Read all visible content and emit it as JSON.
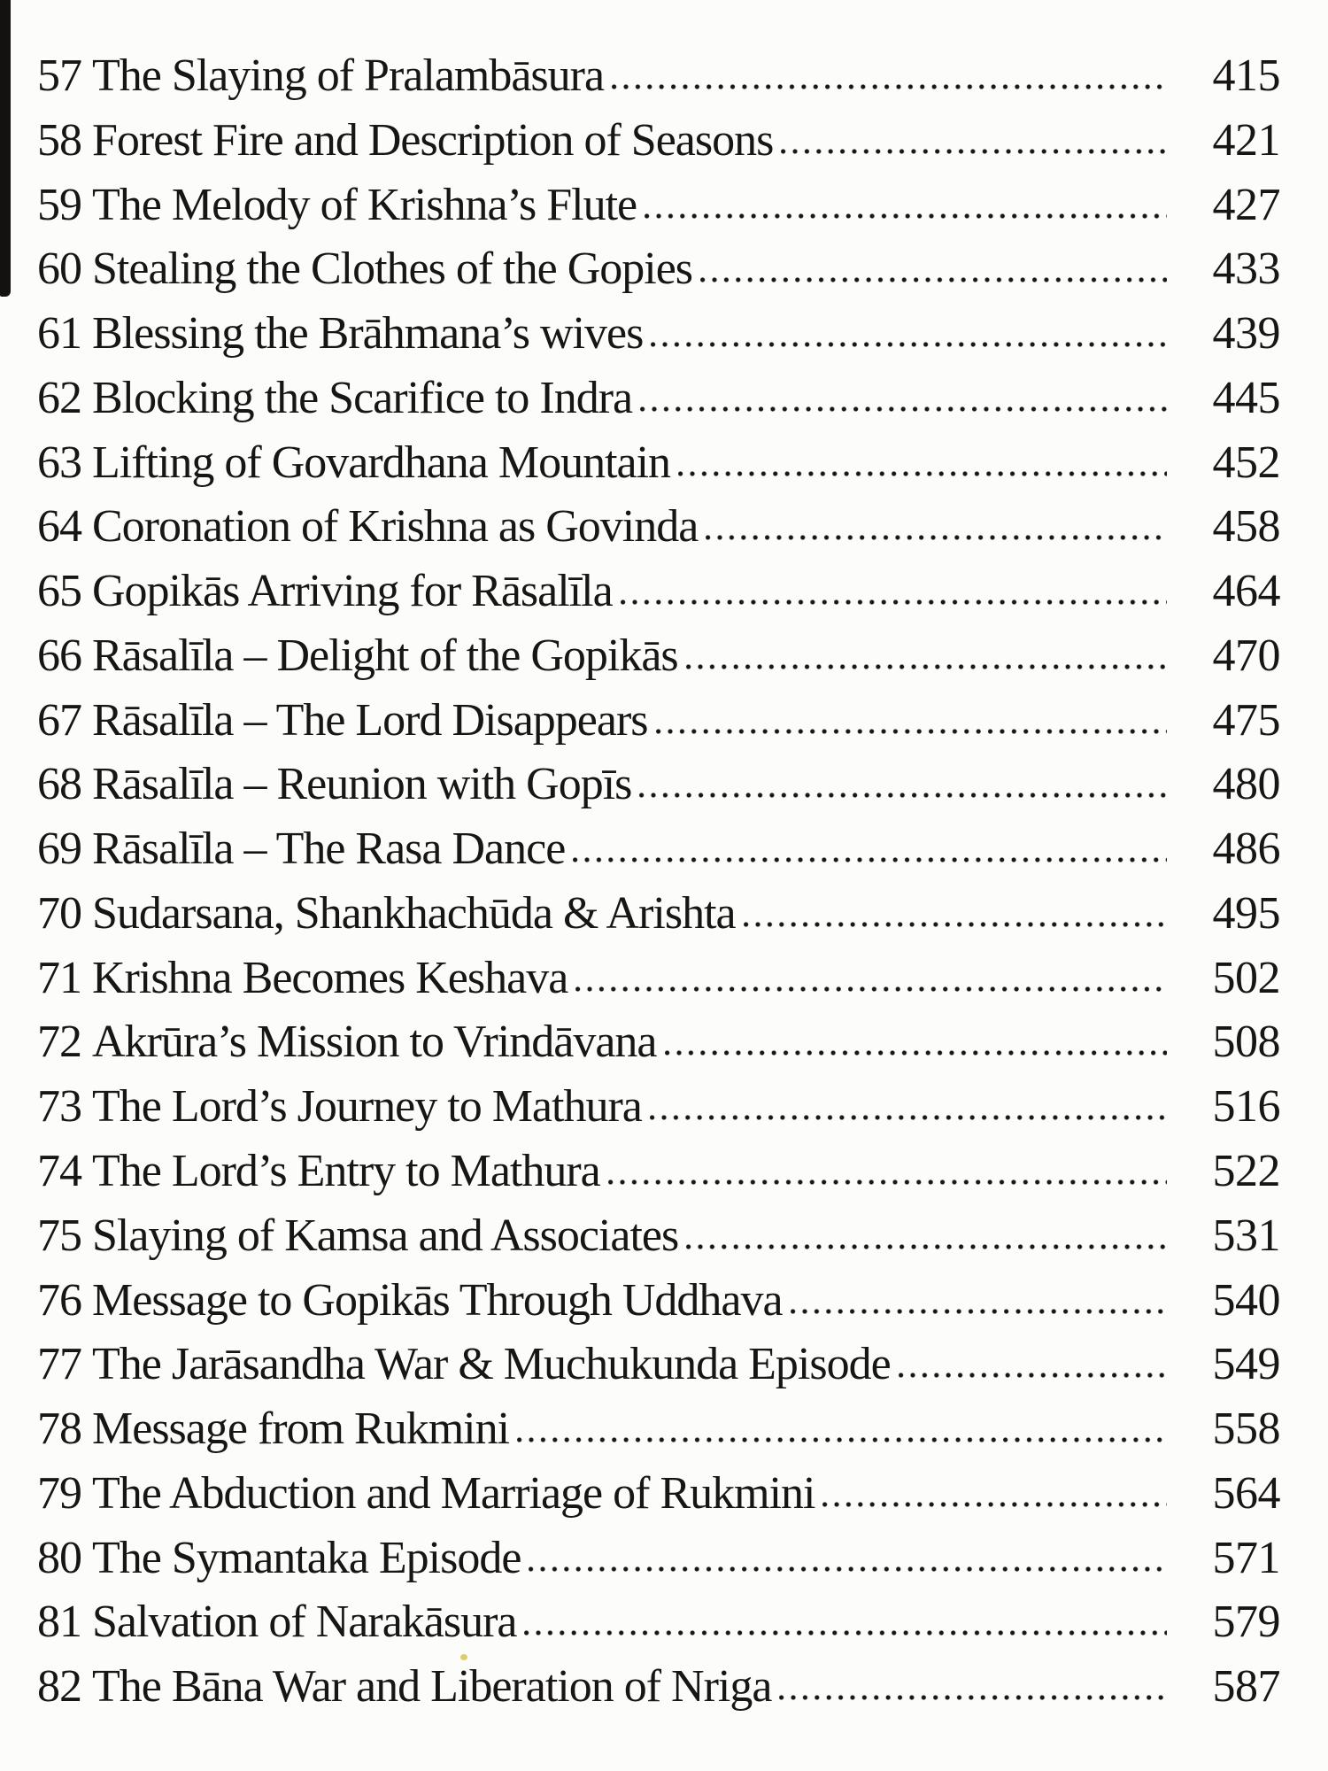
{
  "colors": {
    "ink": "#181614",
    "paper": "#fcfcfa",
    "artifact": "#141210",
    "speck": "#d8c355"
  },
  "document": {
    "kind": "book-table-of-contents",
    "entries": [
      {
        "num": "57",
        "title": "The Slaying of Pralambāsura",
        "page": "415"
      },
      {
        "num": "58",
        "title": "Forest Fire and Description of Seasons",
        "page": "421"
      },
      {
        "num": "59",
        "title": "The Melody of Krishna’s Flute",
        "page": "427"
      },
      {
        "num": "60",
        "title": "Stealing the Clothes of the Gopies",
        "page": "433"
      },
      {
        "num": "61",
        "title": "Blessing the Brāhmana’s wives",
        "page": "439"
      },
      {
        "num": "62",
        "title": "Blocking the Scarifice to Indra",
        "page": "445"
      },
      {
        "num": "63",
        "title": "Lifting of Govardhana Mountain",
        "page": "452"
      },
      {
        "num": "64",
        "title": "Coronation of Krishna as Govinda",
        "page": "458"
      },
      {
        "num": "65",
        "title": "Gopikās Arriving for Rāsalīla",
        "page": "464"
      },
      {
        "num": "66",
        "title": "Rāsalīla – Delight of the Gopikās",
        "page": "470"
      },
      {
        "num": "67",
        "title": "Rāsalīla – The Lord Disappears",
        "page": "475"
      },
      {
        "num": "68",
        "title": "Rāsalīla – Reunion with Gopīs",
        "page": "480"
      },
      {
        "num": "69",
        "title": "Rāsalīla – The Rasa Dance",
        "page": "486"
      },
      {
        "num": "70",
        "title": "Sudarsana, Shankhachūda & Arishta",
        "page": "495"
      },
      {
        "num": "71",
        "title": "Krishna Becomes Keshava",
        "page": "502"
      },
      {
        "num": "72",
        "title": "Akrūra’s Mission to Vrindāvana",
        "page": "508"
      },
      {
        "num": "73",
        "title": "The Lord’s Journey to Mathura",
        "page": "516"
      },
      {
        "num": "74",
        "title": "The Lord’s Entry to Mathura",
        "page": "522"
      },
      {
        "num": "75",
        "title": "Slaying of Kamsa and Associates",
        "page": "531"
      },
      {
        "num": "76",
        "title": "Message to Gopikās Through Uddhava",
        "page": "540"
      },
      {
        "num": "77",
        "title": "The Jarāsandha War & Muchukunda Episode",
        "page": "549"
      },
      {
        "num": "78",
        "title": "Message from Rukmini",
        "page": "558"
      },
      {
        "num": "79",
        "title": "The Abduction and Marriage of Rukmini",
        "page": "564"
      },
      {
        "num": "80",
        "title": "The Symantaka Episode",
        "page": "571"
      },
      {
        "num": "81",
        "title": "Salvation of Narakāsura",
        "page": "579"
      },
      {
        "num": "82",
        "title": "The Bāna War and Liberation of Nriga",
        "page": "587"
      }
    ]
  }
}
